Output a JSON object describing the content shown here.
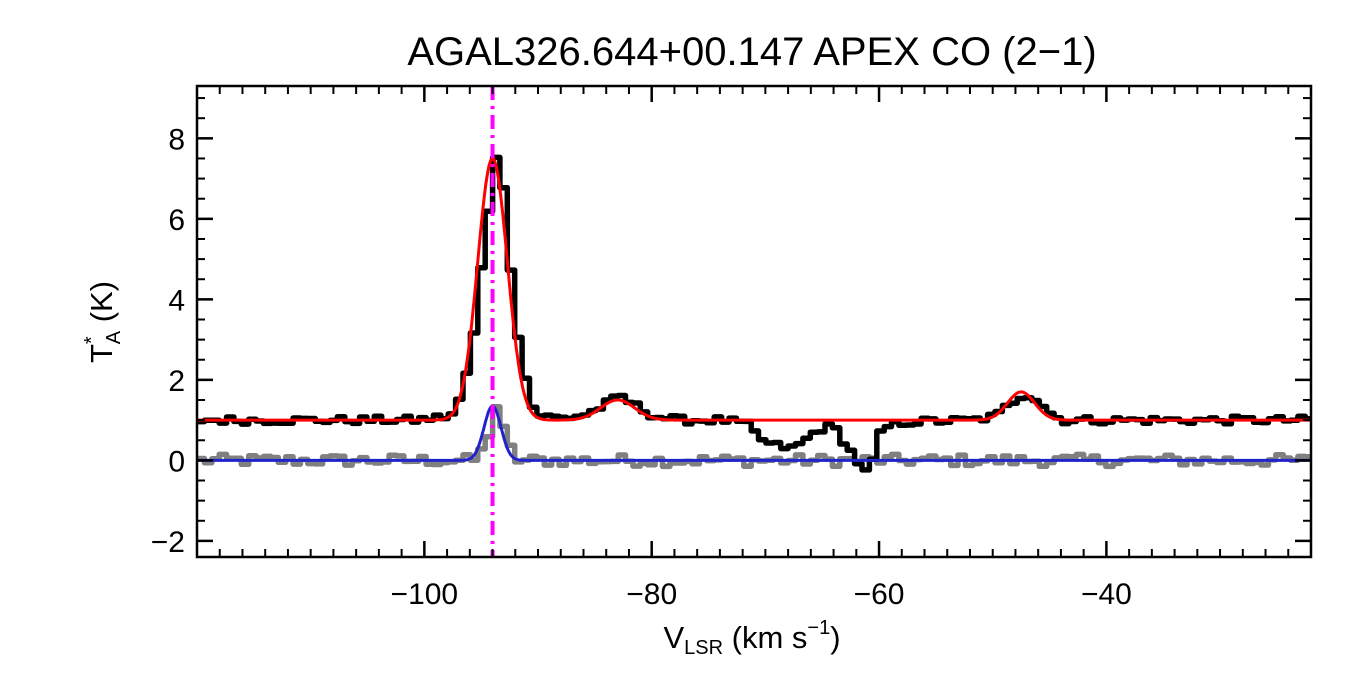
{
  "chart_data": {
    "type": "line",
    "title": "AGAL326.644+00.147  APEX CO (2−1)",
    "xlabel": {
      "main": "V",
      "sub": "LSR",
      "unit_open": " (km s",
      "sup": "−1",
      "unit_close": ")"
    },
    "ylabel": {
      "main": "T",
      "sup": "*",
      "sub": "A",
      "unit": " (K)"
    },
    "xlim": [
      -120,
      -22
    ],
    "ylim": [
      -2.4,
      9.3
    ],
    "xticks": [
      -100,
      -80,
      -60,
      -40
    ],
    "xtick_labels": [
      "−100",
      "−80",
      "−60",
      "−40"
    ],
    "yticks": [
      -2,
      0,
      2,
      4,
      6,
      8
    ],
    "ytick_labels": [
      "−2",
      "0",
      "2",
      "4",
      "6",
      "8"
    ],
    "grid": false,
    "reference_line": {
      "x": -94.0,
      "color": "#ff00ff",
      "style": "dash-dot"
    },
    "colors": {
      "spectrum": "#000000",
      "fit": "#ff0000",
      "residual": "#808080",
      "component": "#2222cc",
      "reference": "#ff00ff"
    },
    "series": [
      {
        "role": "spectrum",
        "style": "steps",
        "offset": 1.0,
        "baseline_noise": 0.1,
        "points": [
          [
            -120,
            0.0
          ],
          [
            -101,
            0.0
          ],
          [
            -98,
            0.1
          ],
          [
            -97,
            0.6
          ],
          [
            -96,
            2.0
          ],
          [
            -95,
            4.5
          ],
          [
            -94,
            6.6
          ],
          [
            -93.5,
            6.2
          ],
          [
            -93,
            4.6
          ],
          [
            -92,
            2.0
          ],
          [
            -91,
            0.4
          ],
          [
            -90,
            0.1
          ],
          [
            -88,
            0.05
          ],
          [
            -86,
            0.15
          ],
          [
            -84,
            0.45
          ],
          [
            -83,
            0.6
          ],
          [
            -82,
            0.4
          ],
          [
            -80,
            0.1
          ],
          [
            -78,
            0.0
          ],
          [
            -74,
            0.0
          ],
          [
            -72,
            -0.1
          ],
          [
            -71,
            -0.4
          ],
          [
            -70,
            -0.6
          ],
          [
            -69,
            -0.65
          ],
          [
            -68,
            -0.7
          ],
          [
            -67,
            -0.55
          ],
          [
            -66,
            -0.3
          ],
          [
            -65,
            -0.15
          ],
          [
            -64,
            -0.25
          ],
          [
            -63,
            -0.7
          ],
          [
            -62,
            -1.1
          ],
          [
            -61.5,
            -1.3
          ],
          [
            -61,
            -1.2
          ],
          [
            -60.5,
            -0.6
          ],
          [
            -60,
            -0.2
          ],
          [
            -58,
            -0.05
          ],
          [
            -52,
            0.0
          ],
          [
            -50,
            0.1
          ],
          [
            -49,
            0.35
          ],
          [
            -48,
            0.6
          ],
          [
            -47,
            0.65
          ],
          [
            -46,
            0.4
          ],
          [
            -45,
            0.1
          ],
          [
            -44,
            0.0
          ],
          [
            -22,
            0.0
          ]
        ]
      },
      {
        "role": "fit",
        "style": "gaussian-sum",
        "offset": 1.0,
        "components": [
          {
            "amp": 6.5,
            "center": -94.0,
            "sigma": 1.3
          },
          {
            "amp": 0.5,
            "center": -83.0,
            "sigma": 1.5
          },
          {
            "amp": 0.7,
            "center": -47.5,
            "sigma": 1.2
          }
        ]
      },
      {
        "role": "residual",
        "style": "steps",
        "offset": 0.0,
        "baseline_noise": 0.15,
        "points": [
          [
            -120,
            0.0
          ],
          [
            -96,
            0.0
          ],
          [
            -95,
            0.3
          ],
          [
            -94,
            1.35
          ],
          [
            -93,
            0.4
          ],
          [
            -92,
            0.0
          ],
          [
            -22,
            0.0
          ]
        ]
      },
      {
        "role": "component",
        "style": "gaussian-sum",
        "offset": 0.0,
        "components": [
          {
            "amp": 1.35,
            "center": -94.0,
            "sigma": 0.75
          }
        ]
      }
    ]
  }
}
